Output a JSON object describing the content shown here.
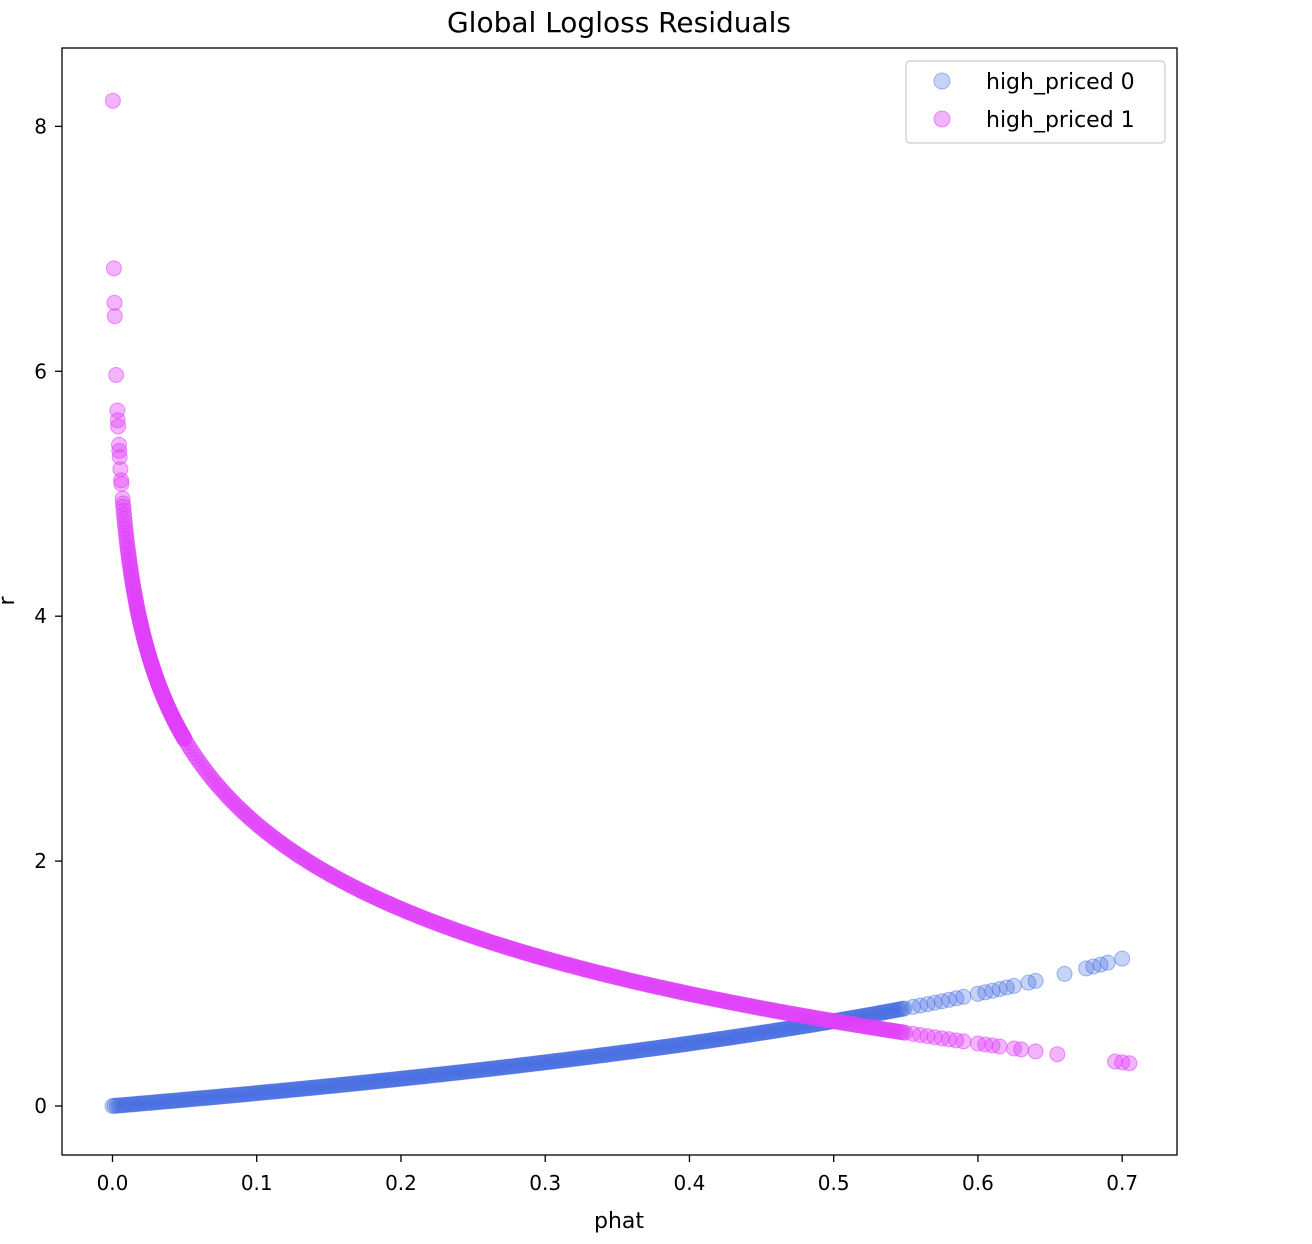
{
  "chart_data": {
    "type": "scatter",
    "title": "Global Logloss Residuals",
    "xlabel": "phat",
    "ylabel": "r",
    "xlim": [
      -0.035,
      0.738
    ],
    "ylim": [
      -0.4,
      8.64
    ],
    "xticks": [
      0.0,
      0.1,
      0.2,
      0.3,
      0.4,
      0.5,
      0.6,
      0.7
    ],
    "xtick_labels": [
      "0.0",
      "0.1",
      "0.2",
      "0.3",
      "0.4",
      "0.5",
      "0.6",
      "0.7"
    ],
    "yticks": [
      0,
      2,
      4,
      6,
      8
    ],
    "ytick_labels": [
      "0",
      "2",
      "4",
      "6",
      "8"
    ],
    "grid": false,
    "legend_position": "top-right",
    "series": [
      {
        "name": "high_priced 0",
        "color": "#4169e1",
        "alpha": 0.3,
        "formula": "r = -ln(1 - phat)",
        "dense_x_range": [
          0.0,
          0.55
        ],
        "x_sparse": [
          0.555,
          0.56,
          0.565,
          0.57,
          0.575,
          0.58,
          0.585,
          0.59,
          0.6,
          0.605,
          0.61,
          0.615,
          0.62,
          0.625,
          0.635,
          0.64,
          0.66,
          0.675,
          0.68,
          0.685,
          0.69,
          0.7
        ]
      },
      {
        "name": "high_priced 1",
        "color": "#e040fb",
        "alpha": 0.4,
        "formula": "r = -ln(phat)",
        "dense_x_range": [
          0.0075,
          0.55
        ],
        "points_small_phat": [
          {
            "x": 0.0003,
            "y": 8.21
          },
          {
            "x": 0.001,
            "y": 6.84
          },
          {
            "x": 0.0014,
            "y": 6.56
          },
          {
            "x": 0.0016,
            "y": 6.45
          },
          {
            "x": 0.0025,
            "y": 5.97
          },
          {
            "x": 0.0034,
            "y": 5.68
          },
          {
            "x": 0.0036,
            "y": 5.6
          },
          {
            "x": 0.0039,
            "y": 5.55
          },
          {
            "x": 0.0045,
            "y": 5.4
          },
          {
            "x": 0.0047,
            "y": 5.35
          },
          {
            "x": 0.005,
            "y": 5.3
          },
          {
            "x": 0.0055,
            "y": 5.2
          },
          {
            "x": 0.006,
            "y": 5.11
          },
          {
            "x": 0.0062,
            "y": 5.08
          },
          {
            "x": 0.007,
            "y": 4.96
          },
          {
            "x": 0.0073,
            "y": 4.92
          }
        ],
        "x_sparse": [
          0.555,
          0.56,
          0.565,
          0.57,
          0.575,
          0.58,
          0.585,
          0.59,
          0.6,
          0.605,
          0.61,
          0.615,
          0.625,
          0.63,
          0.64,
          0.655,
          0.695,
          0.7,
          0.705
        ]
      }
    ]
  }
}
